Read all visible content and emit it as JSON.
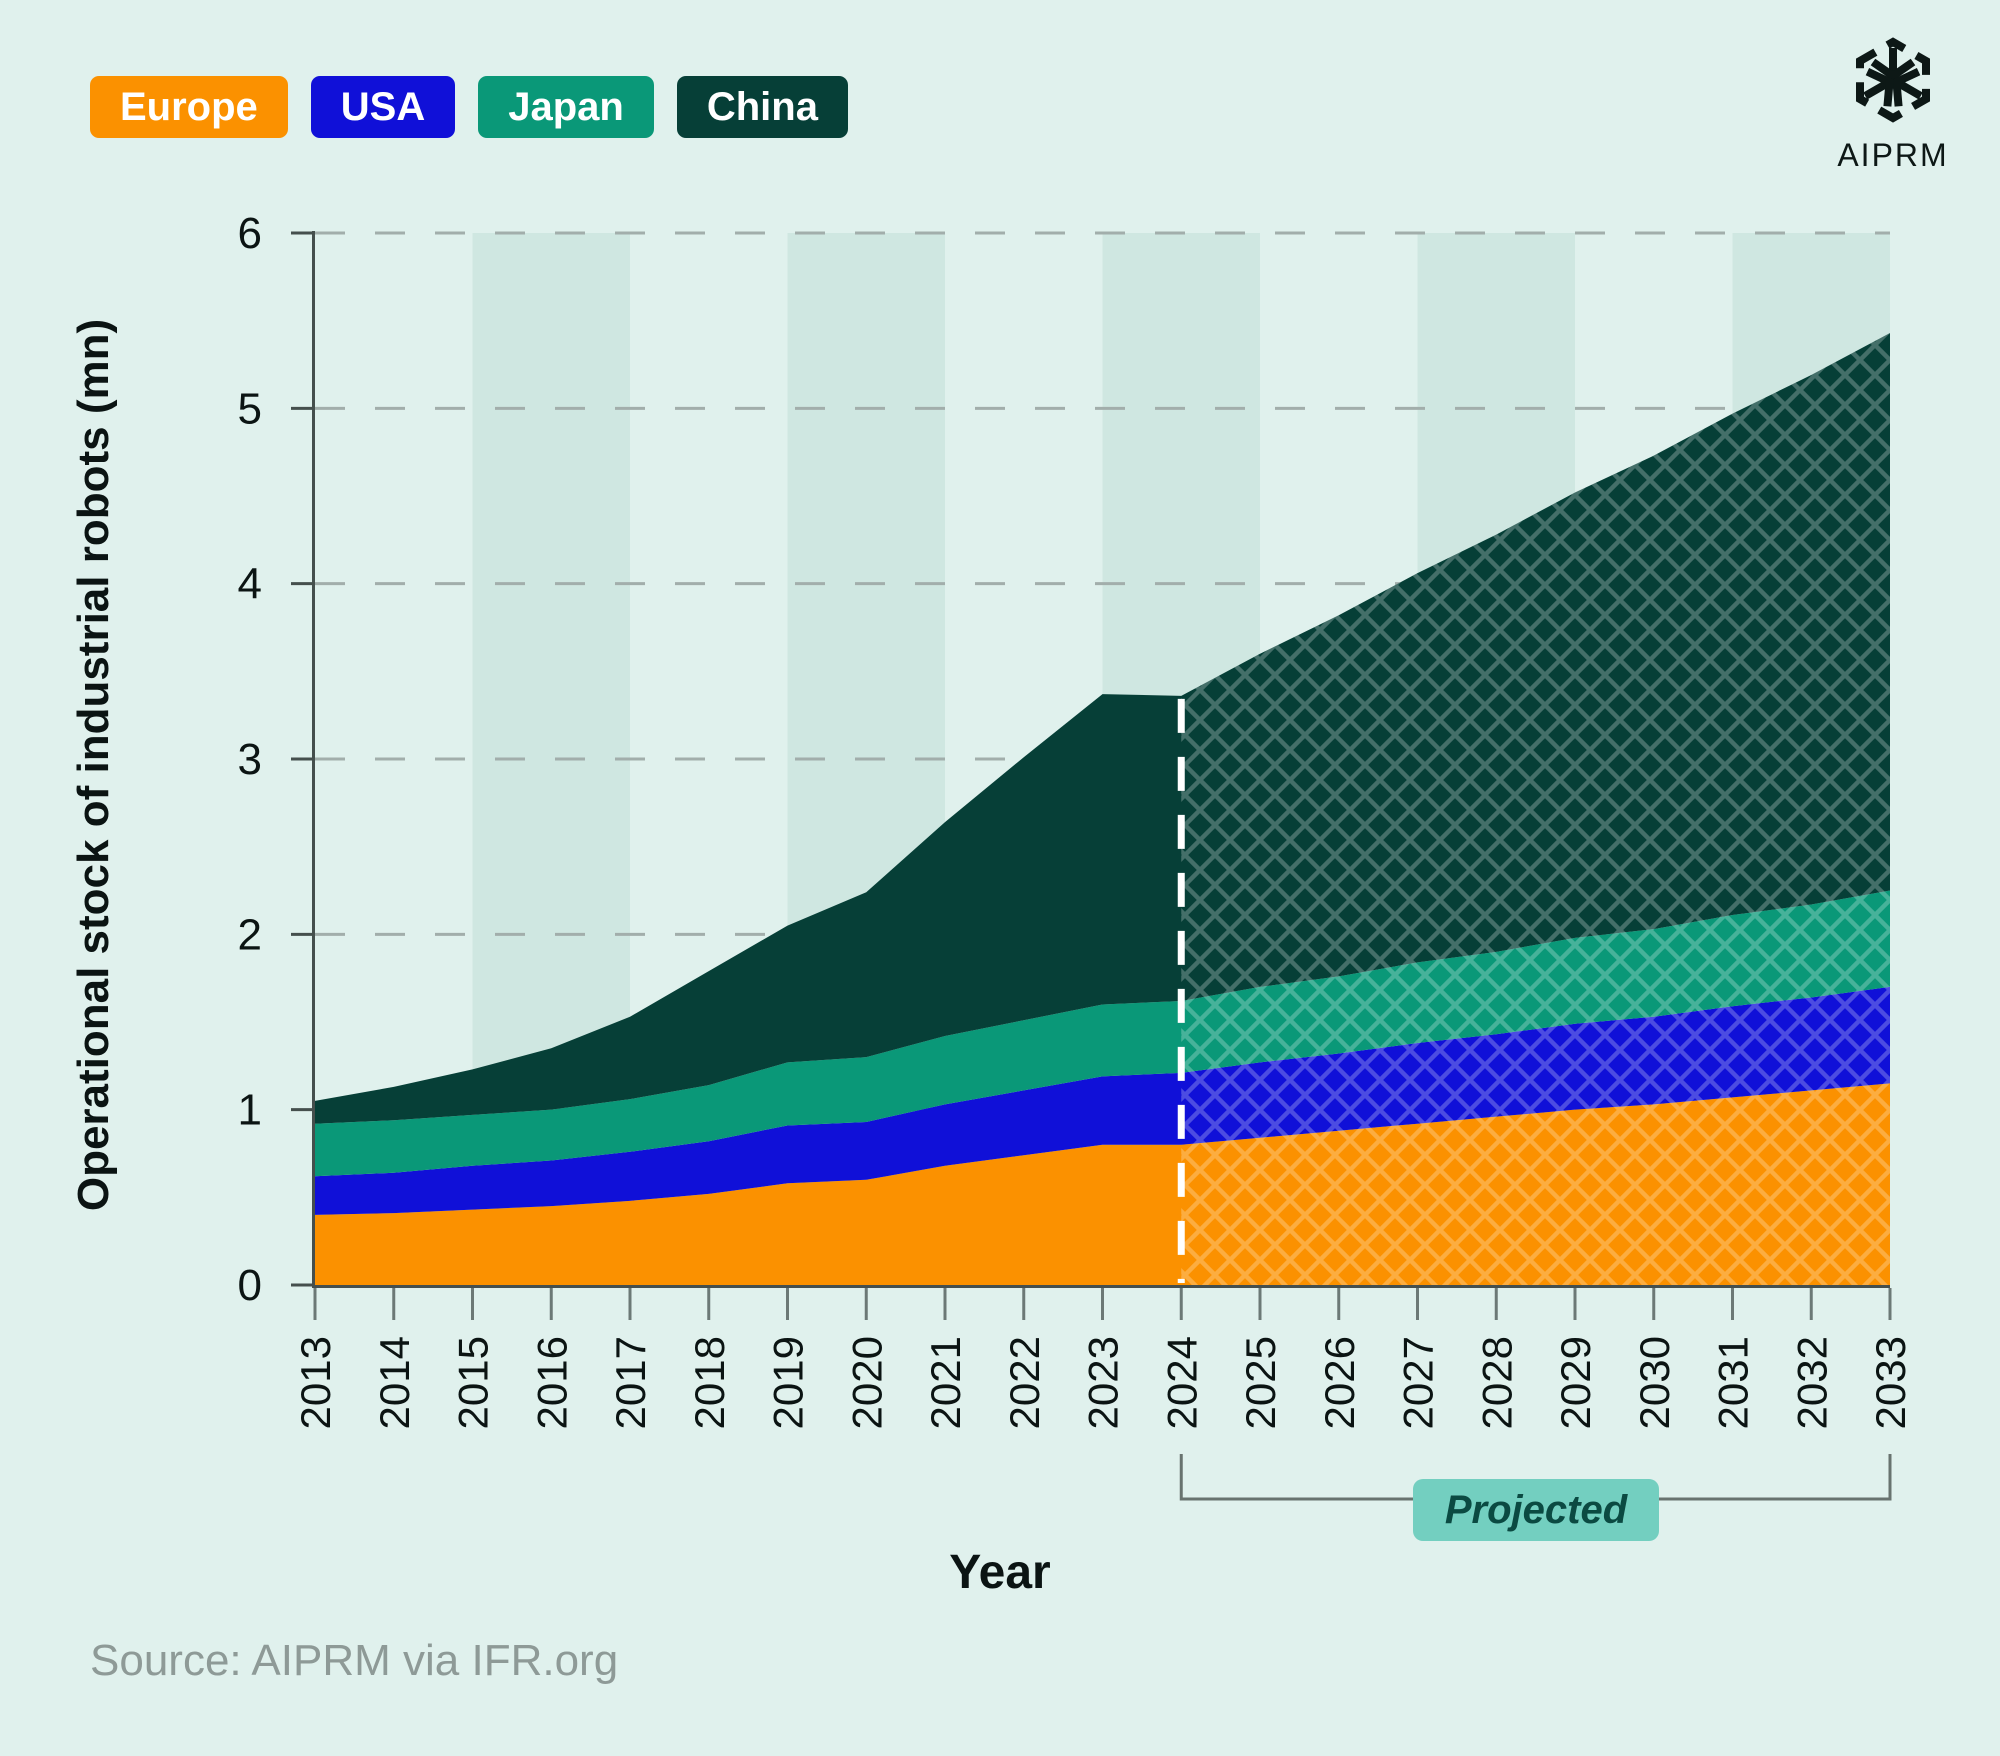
{
  "logo": {
    "text": "AIPRM"
  },
  "source": {
    "text": "Source: AIPRM via IFR.org"
  },
  "palette": {
    "background": "#e0f1ed",
    "stripe": "#cfe7e1",
    "gridline": "#a2aeab",
    "axis": "#454f4d",
    "tick": "#6c7976",
    "text": "#0b1413",
    "source_text": "#8e9a97",
    "bracket": "#68736f",
    "projected_pill_bg": "#73cfc0",
    "projected_pill_text": "#0b4a42",
    "projection_divider": "#ffffff",
    "hatch_overlay": "rgba(255,255,255,0.25)"
  },
  "chart_data": {
    "type": "area",
    "stacked": true,
    "title": "",
    "xlabel": "Year",
    "ylabel": "Operational stock of industrial robots (mn)",
    "ylim": [
      0,
      6
    ],
    "yticks": [
      0,
      1,
      2,
      3,
      4,
      5,
      6
    ],
    "grid": "horizontal-dashed",
    "legend_position": "top-left",
    "projected_from": 2024,
    "projected_label": "Projected",
    "stripe_years": [
      2015,
      2019,
      2023,
      2027,
      2031
    ],
    "x": [
      2013,
      2014,
      2015,
      2016,
      2017,
      2018,
      2019,
      2020,
      2021,
      2022,
      2023,
      2024,
      2025,
      2026,
      2027,
      2028,
      2029,
      2030,
      2031,
      2032,
      2033
    ],
    "series": [
      {
        "name": "Europe",
        "color": "#fb9100",
        "values": [
          0.4,
          0.41,
          0.43,
          0.45,
          0.48,
          0.52,
          0.58,
          0.6,
          0.68,
          0.74,
          0.8,
          0.8,
          0.84,
          0.88,
          0.92,
          0.96,
          1.0,
          1.03,
          1.07,
          1.11,
          1.15
        ]
      },
      {
        "name": "USA",
        "color": "#1010d8",
        "values": [
          0.22,
          0.23,
          0.25,
          0.26,
          0.28,
          0.3,
          0.33,
          0.33,
          0.35,
          0.37,
          0.39,
          0.41,
          0.43,
          0.44,
          0.46,
          0.47,
          0.49,
          0.5,
          0.52,
          0.53,
          0.55
        ]
      },
      {
        "name": "Japan",
        "color": "#0a9878",
        "values": [
          0.3,
          0.3,
          0.29,
          0.29,
          0.3,
          0.32,
          0.36,
          0.37,
          0.39,
          0.4,
          0.41,
          0.41,
          0.43,
          0.44,
          0.46,
          0.47,
          0.49,
          0.5,
          0.52,
          0.53,
          0.55
        ]
      },
      {
        "name": "China",
        "color": "#063f37",
        "values": [
          0.13,
          0.19,
          0.26,
          0.35,
          0.47,
          0.65,
          0.78,
          0.94,
          1.22,
          1.5,
          1.77,
          1.74,
          1.9,
          2.06,
          2.22,
          2.38,
          2.54,
          2.7,
          2.86,
          3.02,
          3.18
        ]
      }
    ]
  }
}
